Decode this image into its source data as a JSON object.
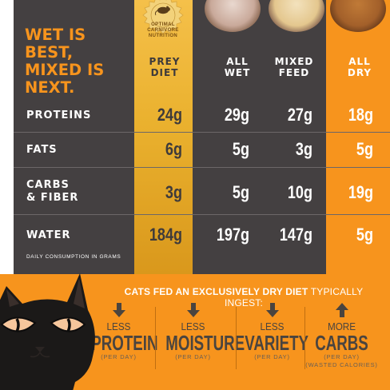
{
  "headline": [
    "WET IS",
    "BEST,",
    "MIXED IS",
    "NEXT."
  ],
  "seal": {
    "line1": "OPTIMAL",
    "line2": "CARNIVORE",
    "line3": "NUTRITION"
  },
  "columns": [
    {
      "line1": "PREY",
      "line2": "DIET"
    },
    {
      "line1": "ALL",
      "line2": "WET"
    },
    {
      "line1": "MIXED",
      "line2": "FEED"
    },
    {
      "line1": "ALL",
      "line2": "DRY"
    }
  ],
  "rows": [
    {
      "label1": "PROTEINS",
      "label2": "",
      "values": [
        "24g",
        "29g",
        "27g",
        "18g"
      ]
    },
    {
      "label1": "FATS",
      "label2": "",
      "values": [
        "6g",
        "5g",
        "3g",
        "5g"
      ]
    },
    {
      "label1": "CARBS",
      "label2": "& FIBER",
      "values": [
        "3g",
        "5g",
        "10g",
        "19g"
      ]
    },
    {
      "label1": "WATER",
      "label2": "",
      "values": [
        "184g",
        "197g",
        "147g",
        "5g"
      ]
    }
  ],
  "footnote": "DAILY CONSUMPTION IN GRAMS",
  "intro": {
    "bold": "CATS FED AN EXCLUSIVELY DRY DIET",
    "rest": " TYPICALLY INGEST:"
  },
  "effects": [
    {
      "direction": "down",
      "small": "LESS",
      "big": "PROTEIN",
      "sub": "(PER DAY)"
    },
    {
      "direction": "down",
      "small": "LESS",
      "big": "MOISTURE",
      "sub": "(PER DAY)"
    },
    {
      "direction": "down",
      "small": "LESS",
      "big": "VARIETY",
      "sub": "(PER DAY)"
    },
    {
      "direction": "up",
      "small": "MORE",
      "big": "CARBS",
      "sub": "(PER DAY)",
      "sub2": "(WASTED CALORIES)"
    }
  ],
  "colors": {
    "dark": "#444041",
    "orange": "#f7941d",
    "gold": "#eab12e",
    "brown": "#4a443f"
  }
}
